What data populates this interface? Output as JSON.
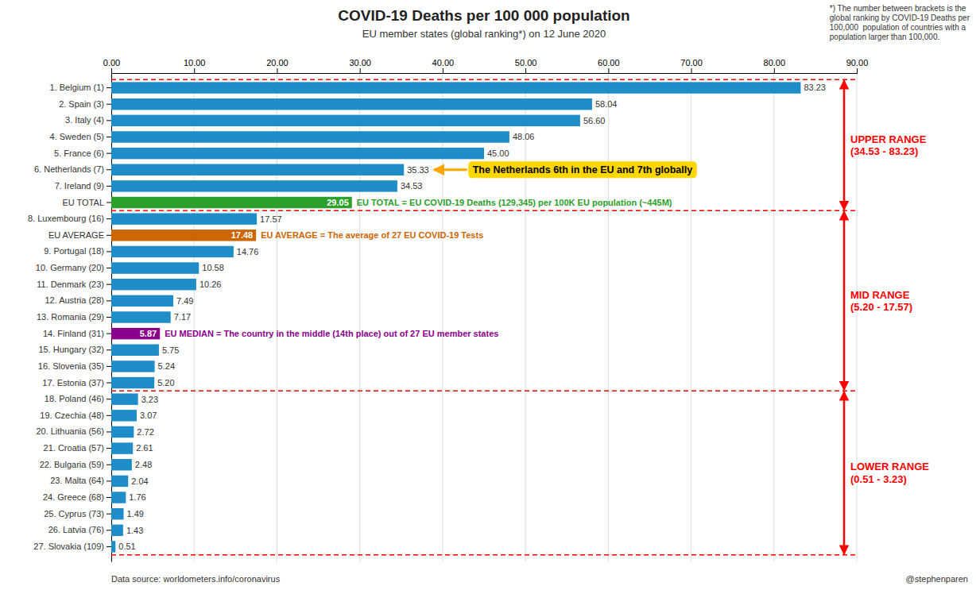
{
  "chart_data": {
    "type": "bar",
    "orientation": "horizontal",
    "title": "COVID-19 Deaths per 100 000 population",
    "subtitle": "EU member states (global ranking*) on 12 June 2020",
    "categories": [
      "1. Belgium (1)",
      "2. Spain (3)",
      "3. Italy (4)",
      "4. Sweden (5)",
      "5. France (6)",
      "6. Netherlands (7)",
      "7. Ireland (9)",
      "EU TOTAL",
      "8. Luxembourg (16)",
      "EU AVERAGE",
      "9. Portugal (18)",
      "10. Germany (20)",
      "11. Denmark (23)",
      "12. Austria (28)",
      "13. Romania (29)",
      "14. Finland (31)",
      "15. Hungary (32)",
      "16. Slovenia (35)",
      "17. Estonia (37)",
      "18. Poland (46)",
      "19. Czechia (48)",
      "20. Lithuania (56)",
      "21. Croatia (57)",
      "22. Bulgaria (59)",
      "23. Malta (64)",
      "24. Greece (68)",
      "25. Cyprus (73)",
      "26. Latvia (76)",
      "27. Slovakia (109)"
    ],
    "values": [
      83.23,
      58.04,
      56.6,
      48.06,
      45.0,
      35.33,
      34.53,
      29.05,
      17.57,
      17.48,
      14.76,
      10.58,
      10.26,
      7.49,
      7.17,
      5.87,
      5.75,
      5.24,
      5.2,
      3.23,
      3.07,
      2.72,
      2.61,
      2.48,
      2.04,
      1.76,
      1.49,
      1.43,
      0.51
    ],
    "value_labels": [
      "83.23",
      "58.04",
      "56.60",
      "48.06",
      "45.00",
      "35.33",
      "34.53",
      "29.05",
      "17.57",
      "17.48",
      "14.76",
      "10.58",
      "10.26",
      "7.49",
      "7.17",
      "5.87",
      "5.75",
      "5.24",
      "5.20",
      "3.23",
      "3.07",
      "2.72",
      "2.61",
      "2.48",
      "2.04",
      "1.76",
      "1.49",
      "1.43",
      "0.51"
    ],
    "data_labels": true,
    "colors": [
      "#1F8DC8",
      "#1F8DC8",
      "#1F8DC8",
      "#1F8DC8",
      "#1F8DC8",
      "#1F8DC8",
      "#1F8DC8",
      "#2CA02C",
      "#1F8DC8",
      "#CC6600",
      "#1F8DC8",
      "#1F8DC8",
      "#1F8DC8",
      "#1F8DC8",
      "#1F8DC8",
      "#8B008B",
      "#1F8DC8",
      "#1F8DC8",
      "#1F8DC8",
      "#1F8DC8",
      "#1F8DC8",
      "#1F8DC8",
      "#1F8DC8",
      "#1F8DC8",
      "#1F8DC8",
      "#1F8DC8",
      "#1F8DC8",
      "#1F8DC8",
      "#1F8DC8"
    ],
    "xlim": [
      0,
      90
    ],
    "xticks": [
      {
        "value": 0,
        "label": "0.00"
      },
      {
        "value": 10,
        "label": "10.00"
      },
      {
        "value": 20,
        "label": "20.00"
      },
      {
        "value": 30,
        "label": "30.00"
      },
      {
        "value": 40,
        "label": "40.00"
      },
      {
        "value": 50,
        "label": "50.00"
      },
      {
        "value": 60,
        "label": "60.00"
      },
      {
        "value": 70,
        "label": "70.00"
      },
      {
        "value": 80,
        "label": "80.00"
      },
      {
        "value": 90,
        "label": "90.00"
      }
    ],
    "grid": true,
    "ranges": [
      {
        "label": [
          "UPPER RANGE",
          "(34.53 - 83.23)"
        ],
        "first": "1. Belgium (1)",
        "last": "EU TOTAL",
        "color": "red"
      },
      {
        "label": [
          "MID RANGE",
          "(5.20 - 17.57)"
        ],
        "first": "8. Luxembourg (16)",
        "last": "17. Estonia (37)",
        "color": "red"
      },
      {
        "label": [
          "LOWER RANGE",
          "(0.51 - 3.23)"
        ],
        "first": "18. Poland (46)",
        "last": "27. Slovakia (109)",
        "color": "red"
      }
    ],
    "annotations": [
      {
        "text": "The Netherlands 6th in the EU and 7th globally",
        "category": "6. Netherlands (7)",
        "color": "black",
        "box_color": "#FFD700",
        "arrow_color": "#FFA500"
      },
      {
        "text": "EU TOTAL = EU COVID-19 Deaths (129,345) per 100K EU population (~445M)",
        "category": "EU TOTAL",
        "color": "#2CA02C"
      },
      {
        "text": "EU AVERAGE = The average of 27 EU COVID-19 Tests",
        "category": "EU AVERAGE",
        "color": "#CC6600"
      },
      {
        "text": "EU MEDIAN = The country in the middle (14th place) out of 27 EU member states",
        "category": "14. Finland (31)",
        "color": "#8B008B"
      }
    ],
    "footnote": [
      "*) The number between brackets is the",
      "global ranking by COVID-19 Deaths per",
      "100,000  population of countries with a",
      "population larger than 100,000."
    ],
    "source": "Data source: worldometers.info/coronavirus",
    "credit": "@stephenparen"
  }
}
